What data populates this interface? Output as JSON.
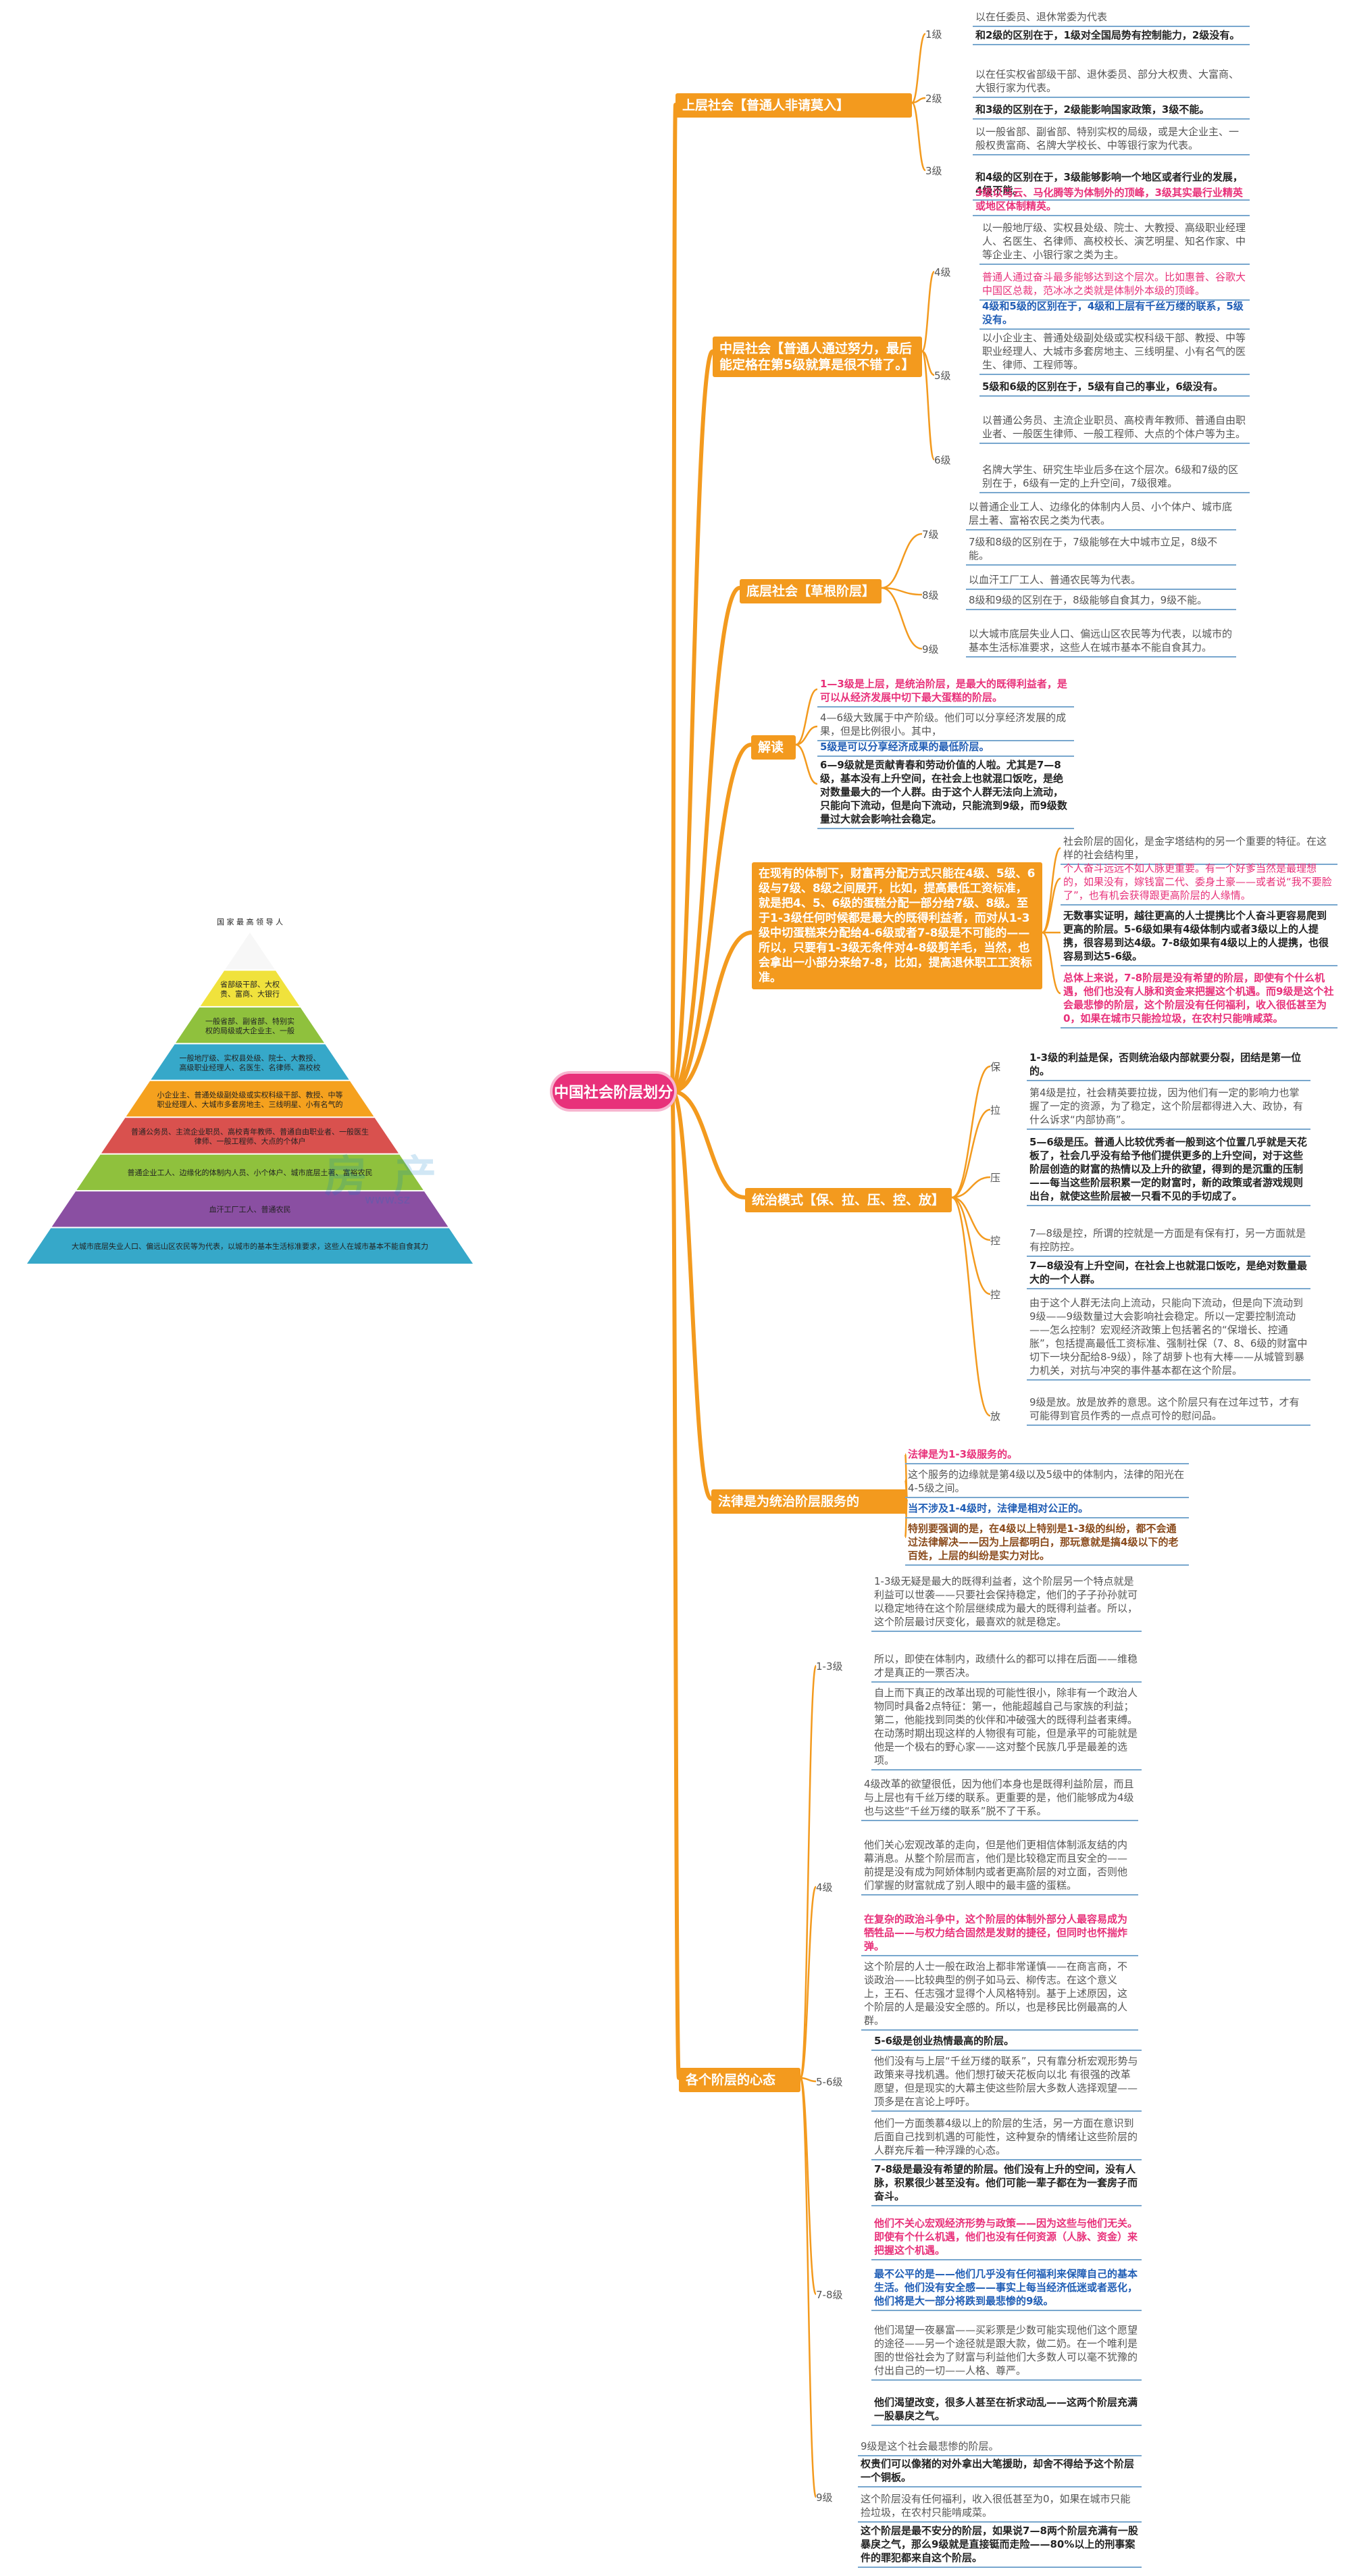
{
  "center": "中国社会阶层划分",
  "topics": {
    "upper": "上层社会【普通人非请莫入】",
    "middle": "中层社会【普通人通过努力，最后能定格在第5级就算是很不错了。】",
    "lower": "底层社会【草根阶层】",
    "explain": "解读",
    "system": "在现有的体制下，财富再分配方式只能在4级、5级、6级与7级、8级之间展开，比如，提高最低工资标准，就是把4、5、6级的蛋糕分配一部分给7级、8级。至于1-3级任何时候都是最大的既得利益者，而对从1-3级中切蛋糕来分配给4-6级或者7-8级是不可能的——所以，只要有1-3级无条件对4-8级剪羊毛，当然，也会拿出一小部分来给7-8，比如，提高退休职工工资标准。",
    "rule": "统治模式【保、拉、压、控、放】",
    "law": "法律是为统治阶层服务的",
    "mind": "各个阶层的心态"
  },
  "levels": {
    "l1": "1级",
    "l2": "2级",
    "l3": "3级",
    "l4": "4级",
    "l5": "5级",
    "l6": "6级",
    "l7": "7级",
    "l8": "8级",
    "l9": "9级",
    "bao": "保",
    "la": "拉",
    "ya": "压",
    "kong1": "控",
    "kong2": "控",
    "fang": "放",
    "m13": "1-3级",
    "m4": "4级",
    "m56": "5-6级",
    "m78": "7-8级",
    "m9": "9级"
  },
  "notes": {
    "u1a": "以在任委员、退休常委为代表",
    "u1b": "和2级的区别在于，1级对全国局势有控制能力，2级没有。",
    "u2a": "以在任实权省部级干部、退休委员、部分大权贵、大富商、大银行家为代表。",
    "u2b": "和3级的区别在于，2级能影响国家政策，3级不能。",
    "u3a": "以一般省部、副省部、特别实权的局级，或是大企业主、一般权贵富商、名牌大学校长、中等银行家为代表。",
    "u3b": "和4级的区别在于，3级能够影响一个地区或者行业的发展，4级不能。",
    "u3c": "3级以马云、马化腾等为体制外的顶峰，3级其实最行业精英或地区体制精英。",
    "m4a": "以一般地厅级、实权县处级、院士、大教授、高级职业经理人、名医生、名律师、高校校长、演艺明星、知名作家、中等企业主、小银行家之类为主。",
    "m4b": "普通人通过奋斗最多能够达到这个层次。比如惠普、谷歌大中国区总裁，范冰冰之类就是体制外本级的顶峰。",
    "m4c": "4级和5级的区别在于，4级和上层有千丝万缕的联系，5级没有。",
    "m5a": "以小企业主、普通处级副处级或实权科级干部、教授、中等职业经理人、大城市多套房地主、三线明星、小有名气的医生、律师、工程师等。",
    "m5b": "5级和6级的区别在于，5级有自己的事业，6级没有。",
    "m6a": "以普通公务员、主流企业职员、高校青年教师、普通自由职业者、一般医生律师、一般工程师、大点的个体户等为主。",
    "m6b": "名牌大学生、研究生毕业后多在这个层次。6级和7级的区别在于，6级有一定的上升空间，7级很难。",
    "l7a": "以普通企业工人、边缘化的体制内人员、小个体户、城市底层土著、富裕农民之类为代表。",
    "l7b": "7级和8级的区别在于，7级能够在大中城市立足，8级不能。",
    "l8a": "以血汗工厂工人、普通农民等为代表。",
    "l8b": "8级和9级的区别在于，8级能够自食其力，9级不能。",
    "l9a": "以大城市底层失业人口、偏远山区农民等为代表，以城市的基本生活标准要求，这些人在城市基本不能自食其力。",
    "e1": "1—3级是上层，是统治阶层，是最大的既得利益者，是可以从经济发展中切下最大蛋糕的阶层。",
    "e2a": "4—6级大致属于中产阶级。他们可以分享经济发展的成果，但是比例很小。其中，",
    "e2b": "5级是可以分享经济成果的最低阶层。",
    "e3": "6—9级就是贡献青春和劳动价值的人啦。尤其是7—8级，基本没有上升空间，在社会上也就混口饭吃，是绝对数量最大的一个人群。由于这个人群无法向上流动，只能向下流动，但是向下流动，只能流到9级，而9级数量过大就会影响社会稳定。",
    "s1a": "社会阶层的固化，是金字塔结构的另一个重要的特征。在这样的社会结构里，",
    "s1b": "个人奋斗远远不如人脉更重要。有一个好爹当然是最理想的，如果没有，嫁钱富二代、委身土豪——或者说“我不要脸了”，也有机会获得跟更高阶层的人缘情。",
    "s2": "无数事实证明，越往更高的人士提携比个人奋斗更容易爬到更高的阶层。5-6级如果有4级体制内或者3级以上的人提携，很容易到达4级。7-8级如果有4级以上的人提携，也很容易到达5-6级。",
    "s3": "总体上来说，7-8阶层是没有希望的阶层，即使有个什么机遇，他们也没有人脉和资金来把握这个机遇。而9级是这个社会最悲惨的阶层，这个阶层没有任何福利，收入很低甚至为0，如果在城市只能捡垃圾，在农村只能啃咸菜。",
    "r1": "1-3级的利益是保，否则统治级内部就要分裂，团结是第一位的。",
    "r2": "第4级是拉，社会精英要拉拢，因为他们有一定的影响力也掌握了一定的资源，为了稳定，这个阶层都得进入大、政协，有什么诉求“内部协商”。",
    "r3": "5—6级是压。普通人比较优秀者一般到这个位置几乎就是天花板了，社会几乎没有给予他们提供更多的上升空间，对于这些阶层创造的财富的热情以及上升的欲望，得到的是沉重的压制——每当这些阶层积累一定的财富时，新的政策或者游戏规则出台，就使这些阶层被一只看不见的手切成了。",
    "r4": "7—8级是控，所谓的控就是一方面是有保有打，另一方面就是有控防控。",
    "r5": "7—8级没有上升空间，在社会上也就混口饭吃，是绝对数量最大的一个人群。",
    "r6": "由于这个人群无法向上流动，只能向下流动，但是向下流动到9级——9级数量过大会影响社会稳定。所以一定要控制流动——怎么控制？宏观经济政策上包括著名的“保增长、控通胀”，包括提高最低工资标准、强制社保（7、8、6级的财富中切下一块分配给8-9级），除了胡萝卜也有大棒——从城管到暴力机关，对抗与冲突的事件基本都在这个阶层。",
    "r7": "9级是放。放是放养的意思。这个阶层只有在过年过节，才有可能得到官员作秀的一点点可怜的慰问品。",
    "w1": "法律是为1-3级服务的。",
    "w2": "这个服务的边缘就是第4级以及5级中的体制内，法律的阳光在4-5级之间。",
    "w3": "当不涉及1-4级时，法律是相对公正的。",
    "w4": "特别要强调的是，在4级以上特别是1-3级的纠纷，都不会通过法律解决——因为上层都明白，那玩意就是搞4级以下的老百姓，上层的纠纷是实力对比。",
    "x1": "1-3级无疑是最大的既得利益者，这个阶层另一个特点就是利益可以世袭——只要社会保持稳定，他们的子子孙孙就可以稳定地待在这个阶层继续成为最大的既得利益者。所以，这个阶层最讨厌变化，最喜欢的就是稳定。",
    "x2": "所以，即使在体制内，政绩什么的都可以排在后面——维稳才是真正的一票否决。",
    "x3": "自上而下真正的改革出现的可能性很小，除非有一个政治人物同时具备2点特征：第一，他能超越自己与家族的利益；第二，他能找到同类的伙伴和冲破强大的既得利益者束缚。在动荡时期出现这样的人物很有可能，但是承平的可能就是他是一个极右的野心家——这对整个民族几乎是最差的选项。",
    "x4": "4级改革的欲望很低，因为他们本身也是既得利益阶层，而且与上层也有千丝万缕的联系。更重要的是，他们能够成为4级也与这些“千丝万缕的联系”脱不了干系。",
    "x5": "他们关心宏观改革的走向，但是他们更相信体制派友结的内幕消息。从整个阶层而言，他们是比较稳定而且安全的——前提是没有成为阿娇体制内或者更高阶层的对立面，否则他们掌握的财富就成了别人眼中的最丰盛的蛋糕。",
    "x6": "在复杂的政治斗争中，这个阶层的体制外部分人最容易成为牺牲品——与权力结合固然是发财的捷径，但同时也怀揣炸弹。",
    "x7": "这个阶层的人士一般在政治上都非常谨慎——在商言商，不谈政治——比较典型的例子如马云、柳传志。在这个意义上，王石、任志强才显得个人风格特别。基于上述原因，这个阶层的人是最没安全感的。所以，也是移民比例最高的人群。",
    "x8": "5-6级是创业热情最高的阶层。",
    "x9": "他们没有与上层“千丝万缕的联系”，只有靠分析宏观形势与政策来寻找机遇。他们想打破天花板向以北 有很强的改革愿望，但是现实的大幕主使这些阶层大多数人选择观望——顶多是在言论上呼吁。",
    "x10": "他们一方面羡慕4级以上的阶层的生活，另一方面在意识到后面自己找到机遇的可能性，这种复杂的情绪让这些阶层的人群充斥着一种浮躁的心态。",
    "x11": "7-8级是最没有希望的阶层。他们没有上升的空间，没有人脉，积累很少甚至没有。他们可能一辈子都在为一套房子而奋斗。",
    "x12": "他们不关心宏观经济形势与政策——因为这些与他们无关。即使有个什么机遇，他们也没有任何资源（人脉、资金）来把握这个机遇。",
    "x13": "最不公平的是——他们几乎没有任何福利来保障自己的基本生活。他们没有安全感——事实上每当经济低迷或者恶化，他们将是大一部分将跌到最悲惨的9级。",
    "x14": "他们渴望一夜暴富——买彩票是少数可能实现他们这个愿望的途径——另一个途径就是跟大款，做二奶。在一个唯利是图的世俗社会为了财富与利益他们大多数人可以毫不犹豫的付出自己的一切——人格、尊严。",
    "x15": "他们渴望改变，很多人甚至在祈求动乱——这两个阶层充满一股暴戾之气。",
    "x16": "9级是这个社会最悲惨的阶层。",
    "x17": "权贵们可以像猪的对外拿出大笔援助，却舍不得给予这个阶层一个铜板。",
    "x18": "这个阶层没有任何福利，收入很低甚至为0，如果在城市只能捡垃圾，在农村只能啃咸菜。",
    "x19": "这个阶层是最不安分的阶层，如果说7—8两个阶层充满有一股暴戾之气，那么9级就是直接铤而走险——80%以上的刑事案件的罪犯都来自这个阶层。"
  },
  "pyramid": {
    "title": "国 家 最 高 领 导 人",
    "tiers": [
      {
        "text": "省部级干部、大权贵、富商、大银行家",
        "color": "#f0e23c"
      },
      {
        "text": "一般省部、副省部、特别实权的局级或大企业主、一般权贵富商、名牌大学校长、中等银行家",
        "color": "#8fc13d"
      },
      {
        "text": "一般地厅级、实权县处级、院士、大教授、高级职业经理人、名医生、名律师、高校校长、演艺明星、知名作家、中等企业主、小银行家",
        "color": "#36a8c9"
      },
      {
        "text": "小企业主、普通处级副处级或实权科级干部、教授、中等职业经理人、大城市多套房地主、三线明星、小有名气的医生、律师、工程师",
        "color": "#f5a11e"
      },
      {
        "text": "普通公务员、主流企业职员、高校青年教师、普通自由职业者、一般医生律师、一般工程师、大点的个体户",
        "color": "#d9514e"
      },
      {
        "text": "普通企业工人、边缘化的体制内人员、小个体户、城市底层土著、富裕农民",
        "color": "#8fc13d"
      },
      {
        "text": "血汗工厂工人、普通农民",
        "color": "#8a4fa2"
      },
      {
        "text": "大城市底层失业人口、偏远山区农民等为代表，以城市的基本生活标准要求，这些人在城市基本不能自食其力",
        "color": "#36a8c9"
      }
    ],
    "watermark": "房 产",
    "watermark_url": "www.sz"
  },
  "colors": {
    "branch": "#f39a1e",
    "center": "#e8317a",
    "underline": "#78a7ce"
  }
}
